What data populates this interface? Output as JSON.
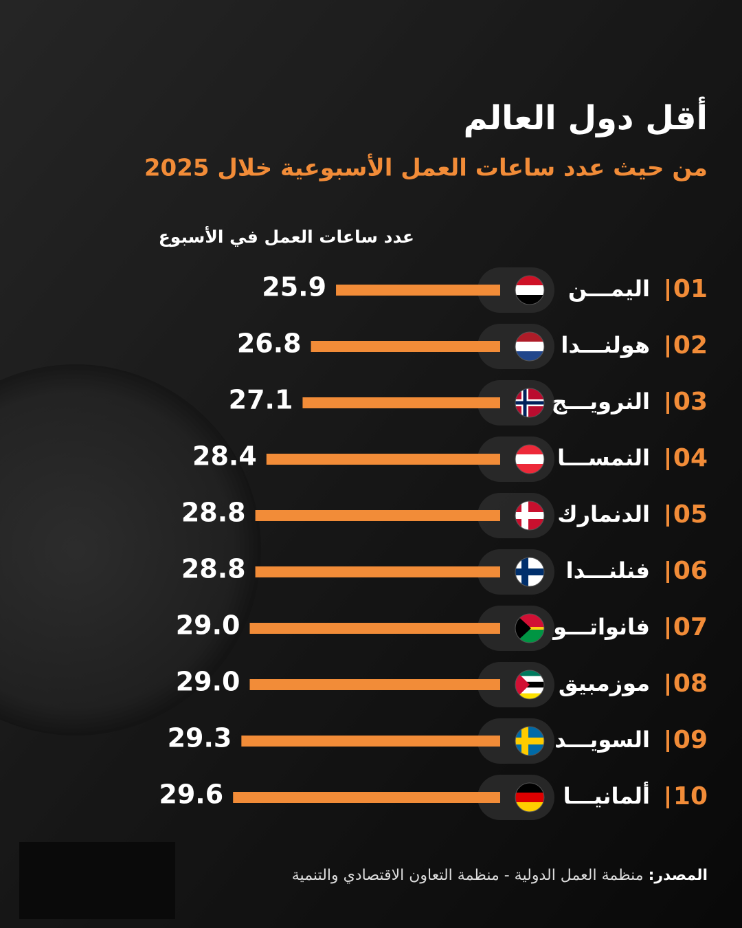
{
  "chart_data": {
    "type": "bar",
    "title": "أقل دول العالم",
    "subtitle": "من حيث عدد ساعات العمل الأسبوعية خلال 2025",
    "value_axis_label": "عدد ساعات العمل في الأسبوع",
    "ranks": [
      "01",
      "02",
      "03",
      "04",
      "05",
      "06",
      "07",
      "08",
      "09",
      "10"
    ],
    "categories": [
      "اليمـــن",
      "هولنـــدا",
      "النرويـــج",
      "النمســـا",
      "الدنمارك",
      "فنلنـــدا",
      "فانواتـــو",
      "موزمبيق",
      "السويـــد",
      "ألمانيـــا"
    ],
    "values": [
      25.9,
      26.8,
      27.1,
      28.4,
      28.8,
      28.8,
      29.0,
      29.0,
      29.3,
      29.6
    ],
    "value_labels": [
      "25.9",
      "26.8",
      "27.1",
      "28.4",
      "28.8",
      "28.8",
      "29.0",
      "29.0",
      "29.3",
      "29.6"
    ],
    "color": "#f28c38",
    "xlim": [
      20,
      30
    ],
    "source_label": "المصدر:",
    "source": "منظمة العمل الدولية - منظمة التعاون الاقتصادي والتنمية"
  }
}
